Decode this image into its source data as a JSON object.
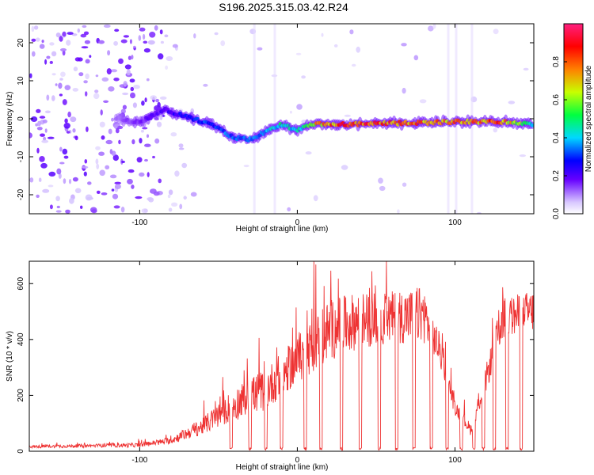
{
  "title": "S196.2025.315.03.42.R24",
  "chart_data": [
    {
      "type": "heatmap",
      "name": "spectrogram",
      "xlabel": "Height of straight line (km)",
      "ylabel": "Frequency (Hz)",
      "xlim": [
        -170,
        150
      ],
      "ylim": [
        -25,
        25
      ],
      "xticks": [
        -100,
        0,
        100
      ],
      "yticks": [
        -20,
        -10,
        0,
        10,
        20
      ],
      "colorbar": {
        "label": "Normalized spectral amplitude",
        "range": [
          0,
          1
        ],
        "ticks": [
          0.0,
          0.2,
          0.4,
          0.6,
          0.8
        ],
        "tick_labels": [
          "0.0",
          "0.2",
          "0.4",
          "0.6",
          "0.8"
        ],
        "colormap": [
          "#ffffff",
          "#d8c8ff",
          "#6600ff",
          "#0000ff",
          "#00d8ff",
          "#00ff40",
          "#c8ff00",
          "#ff8000",
          "#ff0000",
          "#ff2080"
        ]
      },
      "ridge": [
        {
          "x": -115,
          "f": 0.0,
          "amp": 0.12
        },
        {
          "x": -100,
          "f": -1.0,
          "amp": 0.18
        },
        {
          "x": -85,
          "f": 2.5,
          "amp": 0.22
        },
        {
          "x": -70,
          "f": 0.5,
          "amp": 0.3
        },
        {
          "x": -55,
          "f": -1.5,
          "amp": 0.35
        },
        {
          "x": -40,
          "f": -5.0,
          "amp": 0.38
        },
        {
          "x": -30,
          "f": -5.5,
          "amp": 0.4
        },
        {
          "x": -20,
          "f": -3.5,
          "amp": 0.42
        },
        {
          "x": -10,
          "f": -1.5,
          "amp": 0.5
        },
        {
          "x": 0,
          "f": -3.0,
          "amp": 0.45
        },
        {
          "x": 10,
          "f": -1.5,
          "amp": 0.75
        },
        {
          "x": 30,
          "f": -1.5,
          "amp": 0.9
        },
        {
          "x": 60,
          "f": -1.2,
          "amp": 0.88
        },
        {
          "x": 80,
          "f": -1.0,
          "amp": 0.8
        },
        {
          "x": 100,
          "f": -0.8,
          "amp": 0.82
        },
        {
          "x": 130,
          "f": -0.8,
          "amp": 0.85
        },
        {
          "x": 150,
          "f": -1.5,
          "amp": 0.45
        }
      ]
    },
    {
      "type": "line",
      "name": "snr",
      "xlabel": "Height of straight line (km)",
      "ylabel": "SNR (10 * v/v)",
      "xlim": [
        -170,
        150
      ],
      "ylim": [
        0,
        680
      ],
      "xticks": [
        -100,
        0,
        100
      ],
      "yticks": [
        0,
        200,
        400,
        600
      ],
      "color": "#ee3333",
      "envelope": [
        {
          "x": -170,
          "base": 15,
          "spread": 10
        },
        {
          "x": -100,
          "base": 20,
          "spread": 15
        },
        {
          "x": -80,
          "base": 35,
          "spread": 25
        },
        {
          "x": -60,
          "base": 80,
          "spread": 60
        },
        {
          "x": -40,
          "base": 150,
          "spread": 120
        },
        {
          "x": -20,
          "base": 200,
          "spread": 150
        },
        {
          "x": 0,
          "base": 300,
          "spread": 170
        },
        {
          "x": 20,
          "base": 400,
          "spread": 220
        },
        {
          "x": 40,
          "base": 440,
          "spread": 200
        },
        {
          "x": 60,
          "base": 450,
          "spread": 190
        },
        {
          "x": 80,
          "base": 460,
          "spread": 200
        },
        {
          "x": 90,
          "base": 350,
          "spread": 120
        },
        {
          "x": 100,
          "base": 150,
          "spread": 60
        },
        {
          "x": 110,
          "base": 70,
          "spread": 40
        },
        {
          "x": 120,
          "base": 250,
          "spread": 100
        },
        {
          "x": 130,
          "base": 450,
          "spread": 150
        },
        {
          "x": 150,
          "base": 480,
          "spread": 150
        }
      ],
      "dropouts_x": [
        -42,
        -30,
        -20,
        -10,
        5,
        15,
        28,
        40,
        52,
        63,
        74,
        85,
        95,
        104,
        112,
        118,
        125,
        133,
        142
      ]
    }
  ]
}
